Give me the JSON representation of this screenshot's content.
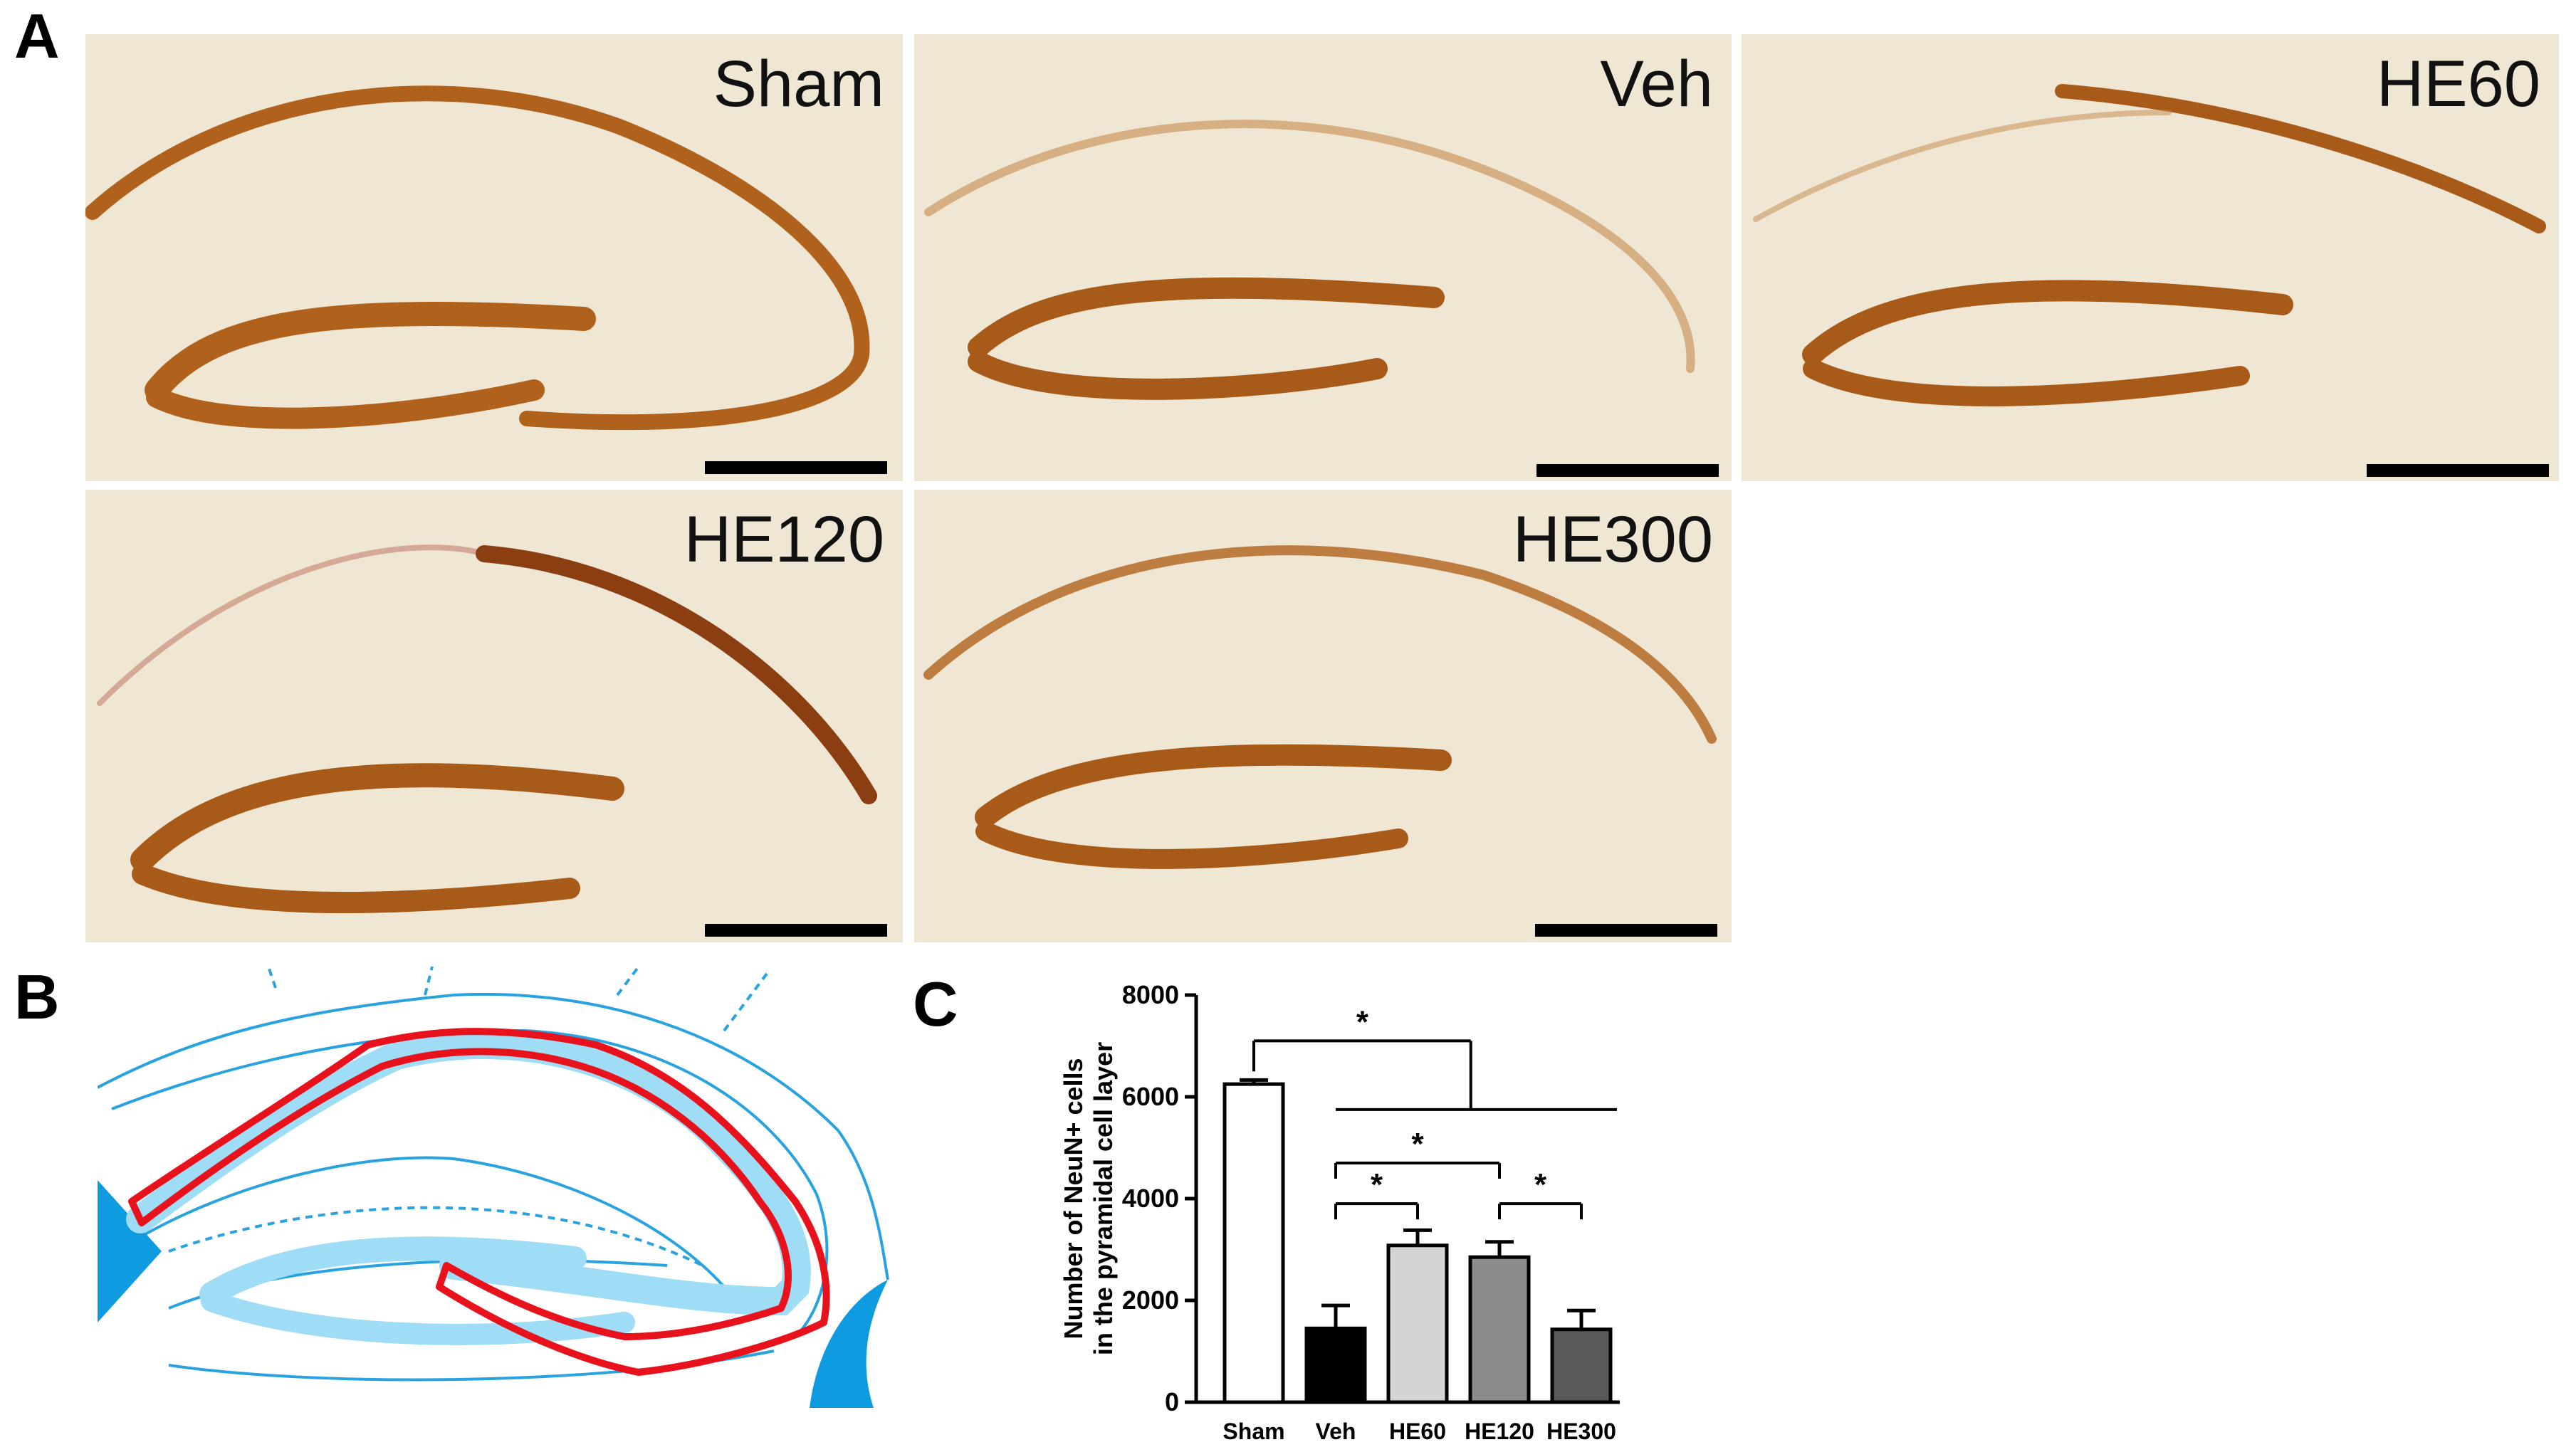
{
  "figure": {
    "panel_labels": {
      "a": "A",
      "b": "B",
      "c": "C"
    }
  },
  "micrographs": [
    {
      "label": "Sham"
    },
    {
      "label": "Veh"
    },
    {
      "label": "HE60"
    },
    {
      "label": "HE120"
    },
    {
      "label": "HE300"
    }
  ],
  "colors": {
    "tissue_bg": "#efe6d3",
    "stain": "#b0621c",
    "stain_dark": "#8a3e12",
    "schematic_line": "#29a3e0",
    "schematic_fill": "#9fdcf5",
    "schematic_highlight": "#e8121c"
  },
  "chart_data": {
    "type": "bar",
    "categories": [
      "Sham",
      "Veh",
      "HE60",
      "HE120",
      "HE300"
    ],
    "values": [
      6250,
      1450,
      3080,
      2850,
      1430
    ],
    "errors": [
      80,
      450,
      300,
      300,
      370
    ],
    "bar_colors": [
      "#ffffff",
      "#000000",
      "#d4d4d4",
      "#8c8c8c",
      "#5a5a5a"
    ],
    "ylabel": "Number of NeuN+ cells\nin the pyramidal cell layer",
    "xlabel": "",
    "ylim": [
      0,
      8000
    ],
    "yticks": [
      0,
      2000,
      4000,
      6000,
      8000
    ],
    "significance": [
      {
        "from": "Sham",
        "to": [
          "Veh",
          "HE60",
          "HE120",
          "HE300"
        ],
        "label": "*"
      },
      {
        "from": "Veh",
        "to": [
          "HE120"
        ],
        "label": "*"
      },
      {
        "from": "Veh",
        "to": [
          "HE60"
        ],
        "label": "*"
      },
      {
        "from": "HE120",
        "to": [
          "HE300"
        ],
        "label": "*"
      }
    ]
  }
}
